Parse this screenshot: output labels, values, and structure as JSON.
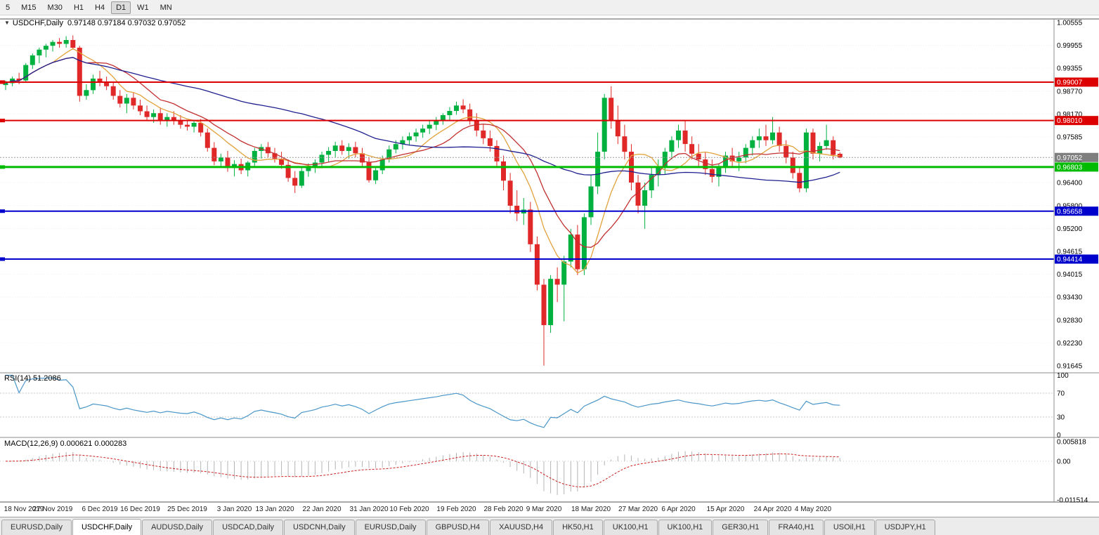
{
  "toolbar": {
    "timeframe_buttons": [
      "5",
      "M15",
      "M30",
      "H1",
      "H4",
      "D1",
      "W1",
      "MN"
    ],
    "active_timeframe": "D1"
  },
  "chart": {
    "symbol": "USDCHF,Daily",
    "ohlc_text": "0.97148 0.97184 0.97032 0.97052",
    "rsi_label": "RSI(14) 51.2086",
    "macd_label": "MACD(12,26,9) 0.000621 0.000283"
  },
  "chart_data": {
    "type": "candlestick",
    "title": "USDCHF,Daily",
    "price_axis": {
      "top": 1.00555,
      "bottom": 0.91645,
      "labels": [
        "1.00555",
        "0.99955",
        "0.99355",
        "0.98770",
        "0.98170",
        "0.97585",
        "0.96991",
        "0.96400",
        "0.95800",
        "0.95200",
        "0.94615",
        "0.94015",
        "0.93430",
        "0.92830",
        "0.92230",
        "0.91645"
      ]
    },
    "x_axis_labels": [
      {
        "label": "18 Nov 2019",
        "bar": 0
      },
      {
        "label": "27 Nov 2019",
        "bar": 7
      },
      {
        "label": "6 Dec 2019",
        "bar": 14
      },
      {
        "label": "16 Dec 2019",
        "bar": 20
      },
      {
        "label": "25 Dec 2019",
        "bar": 27
      },
      {
        "label": "3 Jan 2020",
        "bar": 34
      },
      {
        "label": "13 Jan 2020",
        "bar": 40
      },
      {
        "label": "22 Jan 2020",
        "bar": 47
      },
      {
        "label": "31 Jan 2020",
        "bar": 54
      },
      {
        "label": "10 Feb 2020",
        "bar": 60
      },
      {
        "label": "19 Feb 2020",
        "bar": 67
      },
      {
        "label": "28 Feb 2020",
        "bar": 74
      },
      {
        "label": "9 Mar 2020",
        "bar": 80
      },
      {
        "label": "18 Mar 2020",
        "bar": 87
      },
      {
        "label": "27 Mar 2020",
        "bar": 94
      },
      {
        "label": "6 Apr 2020",
        "bar": 100
      },
      {
        "label": "15 Apr 2020",
        "bar": 107
      },
      {
        "label": "24 Apr 2020",
        "bar": 114
      },
      {
        "label": "4 May 2020",
        "bar": 120
      }
    ],
    "candles": [
      [
        0.9893,
        0.9905,
        0.988,
        0.9898
      ],
      [
        0.9898,
        0.9915,
        0.989,
        0.991
      ],
      [
        0.991,
        0.9925,
        0.9895,
        0.9905
      ],
      [
        0.9905,
        0.995,
        0.99,
        0.9945
      ],
      [
        0.9945,
        0.9975,
        0.9935,
        0.997
      ],
      [
        0.997,
        0.999,
        0.995,
        0.9985
      ],
      [
        0.9985,
        1.0,
        0.9965,
        0.9995
      ],
      [
        0.9995,
        1.001,
        0.998,
        1.0005
      ],
      [
        1.0005,
        1.0015,
        0.999,
        1.0
      ],
      [
        1.0,
        1.002,
        0.999,
        1.001
      ],
      [
        1.001,
        1.0022,
        0.9985,
        0.999
      ],
      [
        0.999,
        0.9995,
        0.985,
        0.9865
      ],
      [
        0.9865,
        0.9895,
        0.9855,
        0.988
      ],
      [
        0.988,
        0.992,
        0.987,
        0.991
      ],
      [
        0.991,
        0.993,
        0.989,
        0.99
      ],
      [
        0.99,
        0.9915,
        0.988,
        0.989
      ],
      [
        0.989,
        0.99,
        0.9855,
        0.9865
      ],
      [
        0.9865,
        0.988,
        0.9835,
        0.9845
      ],
      [
        0.9845,
        0.987,
        0.982,
        0.986
      ],
      [
        0.986,
        0.9875,
        0.983,
        0.984
      ],
      [
        0.984,
        0.9855,
        0.9815,
        0.9825
      ],
      [
        0.9825,
        0.984,
        0.98,
        0.981
      ],
      [
        0.981,
        0.983,
        0.9795,
        0.982
      ],
      [
        0.982,
        0.9835,
        0.979,
        0.98
      ],
      [
        0.98,
        0.982,
        0.9785,
        0.981
      ],
      [
        0.981,
        0.9825,
        0.979,
        0.98
      ],
      [
        0.98,
        0.9815,
        0.978,
        0.979
      ],
      [
        0.979,
        0.98,
        0.9775,
        0.9785
      ],
      [
        0.9785,
        0.98,
        0.977,
        0.9795
      ],
      [
        0.9795,
        0.9805,
        0.976,
        0.977
      ],
      [
        0.977,
        0.978,
        0.972,
        0.973
      ],
      [
        0.973,
        0.9745,
        0.9685,
        0.9695
      ],
      [
        0.9695,
        0.9715,
        0.968,
        0.9705
      ],
      [
        0.9705,
        0.9722,
        0.9668,
        0.9678
      ],
      [
        0.9678,
        0.9698,
        0.9656,
        0.9688
      ],
      [
        0.9688,
        0.9702,
        0.9662,
        0.9672
      ],
      [
        0.9672,
        0.9696,
        0.9656,
        0.9692
      ],
      [
        0.9692,
        0.973,
        0.9682,
        0.9722
      ],
      [
        0.9722,
        0.974,
        0.9702,
        0.9732
      ],
      [
        0.9732,
        0.9745,
        0.9706,
        0.9716
      ],
      [
        0.9716,
        0.973,
        0.9692,
        0.9702
      ],
      [
        0.9702,
        0.972,
        0.9676,
        0.9686
      ],
      [
        0.9686,
        0.97,
        0.9642,
        0.9652
      ],
      [
        0.9652,
        0.967,
        0.9613,
        0.9632
      ],
      [
        0.9632,
        0.968,
        0.9626,
        0.967
      ],
      [
        0.967,
        0.969,
        0.9655,
        0.968
      ],
      [
        0.968,
        0.97,
        0.9665,
        0.9692
      ],
      [
        0.9692,
        0.972,
        0.9682,
        0.9712
      ],
      [
        0.9712,
        0.9732,
        0.9692,
        0.9722
      ],
      [
        0.9722,
        0.9746,
        0.9706,
        0.9736
      ],
      [
        0.9736,
        0.975,
        0.9712,
        0.9722
      ],
      [
        0.9722,
        0.9742,
        0.9702,
        0.9732
      ],
      [
        0.9732,
        0.9746,
        0.9706,
        0.9716
      ],
      [
        0.9716,
        0.973,
        0.9682,
        0.9692
      ],
      [
        0.9692,
        0.9706,
        0.964,
        0.9646
      ],
      [
        0.9646,
        0.968,
        0.9636,
        0.9672
      ],
      [
        0.9672,
        0.971,
        0.9662,
        0.97
      ],
      [
        0.97,
        0.9736,
        0.9692,
        0.9726
      ],
      [
        0.9726,
        0.975,
        0.9716,
        0.974
      ],
      [
        0.974,
        0.976,
        0.9726,
        0.975
      ],
      [
        0.975,
        0.977,
        0.9736,
        0.976
      ],
      [
        0.976,
        0.978,
        0.9746,
        0.977
      ],
      [
        0.977,
        0.979,
        0.9756,
        0.978
      ],
      [
        0.978,
        0.98,
        0.9766,
        0.979
      ],
      [
        0.979,
        0.981,
        0.9776,
        0.98
      ],
      [
        0.98,
        0.982,
        0.979,
        0.9815
      ],
      [
        0.9815,
        0.9836,
        0.98,
        0.9826
      ],
      [
        0.9826,
        0.985,
        0.9816,
        0.984
      ],
      [
        0.984,
        0.9856,
        0.982,
        0.983
      ],
      [
        0.983,
        0.9845,
        0.979,
        0.98
      ],
      [
        0.98,
        0.982,
        0.976,
        0.9775
      ],
      [
        0.9775,
        0.979,
        0.974,
        0.9755
      ],
      [
        0.9755,
        0.9775,
        0.972,
        0.9735
      ],
      [
        0.9735,
        0.975,
        0.968,
        0.9695
      ],
      [
        0.9695,
        0.971,
        0.962,
        0.9645
      ],
      [
        0.9645,
        0.9665,
        0.956,
        0.958
      ],
      [
        0.958,
        0.962,
        0.954,
        0.956
      ],
      [
        0.956,
        0.96,
        0.953,
        0.957
      ],
      [
        0.957,
        0.959,
        0.946,
        0.948
      ],
      [
        0.948,
        0.95,
        0.936,
        0.9375
      ],
      [
        0.9375,
        0.939,
        0.9165,
        0.927
      ],
      [
        0.927,
        0.94,
        0.925,
        0.939
      ],
      [
        0.939,
        0.942,
        0.933,
        0.9375
      ],
      [
        0.9375,
        0.945,
        0.928,
        0.9435
      ],
      [
        0.9435,
        0.952,
        0.942,
        0.9505
      ],
      [
        0.9505,
        0.953,
        0.94,
        0.9415
      ],
      [
        0.9415,
        0.956,
        0.94,
        0.955
      ],
      [
        0.955,
        0.966,
        0.953,
        0.963
      ],
      [
        0.963,
        0.977,
        0.961,
        0.972
      ],
      [
        0.972,
        0.987,
        0.97,
        0.986
      ],
      [
        0.986,
        0.989,
        0.978,
        0.98
      ],
      [
        0.98,
        0.984,
        0.974,
        0.976
      ],
      [
        0.976,
        0.979,
        0.97,
        0.972
      ],
      [
        0.972,
        0.974,
        0.962,
        0.964
      ],
      [
        0.964,
        0.966,
        0.956,
        0.958
      ],
      [
        0.958,
        0.964,
        0.952,
        0.962
      ],
      [
        0.962,
        0.968,
        0.96,
        0.966
      ],
      [
        0.966,
        0.97,
        0.963,
        0.968
      ],
      [
        0.968,
        0.973,
        0.966,
        0.972
      ],
      [
        0.972,
        0.976,
        0.97,
        0.975
      ],
      [
        0.975,
        0.979,
        0.973,
        0.9775
      ],
      [
        0.9775,
        0.98,
        0.972,
        0.974
      ],
      [
        0.974,
        0.976,
        0.97,
        0.9715
      ],
      [
        0.9715,
        0.974,
        0.968,
        0.97
      ],
      [
        0.97,
        0.972,
        0.966,
        0.9675
      ],
      [
        0.9675,
        0.97,
        0.964,
        0.9655
      ],
      [
        0.9655,
        0.969,
        0.963,
        0.968
      ],
      [
        0.968,
        0.972,
        0.9665,
        0.971
      ],
      [
        0.971,
        0.973,
        0.968,
        0.9695
      ],
      [
        0.9695,
        0.972,
        0.967,
        0.9705
      ],
      [
        0.9705,
        0.974,
        0.969,
        0.973
      ],
      [
        0.973,
        0.976,
        0.971,
        0.975
      ],
      [
        0.975,
        0.978,
        0.973,
        0.976
      ],
      [
        0.976,
        0.979,
        0.9735,
        0.975
      ],
      [
        0.975,
        0.981,
        0.974,
        0.977
      ],
      [
        0.977,
        0.9785,
        0.972,
        0.9735
      ],
      [
        0.9735,
        0.975,
        0.969,
        0.9705
      ],
      [
        0.9705,
        0.972,
        0.965,
        0.9665
      ],
      [
        0.9665,
        0.968,
        0.9615,
        0.9625
      ],
      [
        0.9625,
        0.978,
        0.9615,
        0.977
      ],
      [
        0.977,
        0.978,
        0.97,
        0.9715
      ],
      [
        0.9715,
        0.9745,
        0.9695,
        0.9735
      ],
      [
        0.9735,
        0.979,
        0.9725,
        0.975
      ],
      [
        0.975,
        0.976,
        0.97,
        0.9712
      ],
      [
        0.97148,
        0.97184,
        0.97032,
        0.97052
      ]
    ],
    "colors": {
      "bull": "#00b140",
      "bear": "#e02828",
      "grid": "#f0f0f0",
      "current_price": "#7f7f7f"
    },
    "moving_averages": [
      {
        "period": 8,
        "color": "#e2a23c"
      },
      {
        "period": 13,
        "color": "#c23030"
      },
      {
        "period": 45,
        "color": "#1f1f8f"
      }
    ],
    "horizontal_lines": [
      {
        "value": 0.99007,
        "label": "0.99007",
        "color": "#dd0000",
        "width": 2
      },
      {
        "value": 0.9801,
        "label": "0.98010",
        "color": "#dd0000",
        "width": 2
      },
      {
        "value": 0.96803,
        "label": "0.96803",
        "color": "#00bb00",
        "width": 3
      },
      {
        "value": 0.95658,
        "label": "0.95658",
        "color": "#0000cc",
        "width": 2
      },
      {
        "value": 0.94414,
        "label": "0.94414",
        "color": "#0000cc",
        "width": 2
      }
    ],
    "current_price": {
      "value": 0.97052,
      "label": "0.97052"
    },
    "rsi": {
      "period": 14,
      "current": 51.2086,
      "levels": [
        "100",
        "70",
        "30",
        "0"
      ],
      "range": [
        0,
        100
      ],
      "color": "#4a96c8"
    },
    "macd": {
      "fast": 12,
      "slow": 26,
      "signal": 9,
      "current_main": 0.000621,
      "current_signal": 0.000283,
      "axis_labels": [
        "0.005818",
        "0.00",
        "-0.011514"
      ],
      "max": 0.005818,
      "min": -0.011514,
      "hist_color": "#b4b4b4",
      "signal_color": "#cc2020"
    }
  },
  "tabs": {
    "items": [
      {
        "label": "EURUSD,Daily",
        "active": false
      },
      {
        "label": "USDCHF,Daily",
        "active": true
      },
      {
        "label": "AUDUSD,Daily",
        "active": false
      },
      {
        "label": "USDCAD,Daily",
        "active": false
      },
      {
        "label": "USDCNH,Daily",
        "active": false
      },
      {
        "label": "EURUSD,Daily",
        "active": false
      },
      {
        "label": "GBPUSD,H4",
        "active": false
      },
      {
        "label": "XAUUSD,H4",
        "active": false
      },
      {
        "label": "HK50,H1",
        "active": false
      },
      {
        "label": "UK100,H1",
        "active": false
      },
      {
        "label": "UK100,H1",
        "active": false
      },
      {
        "label": "GER30,H1",
        "active": false
      },
      {
        "label": "FRA40,H1",
        "active": false
      },
      {
        "label": "USOil,H1",
        "active": false
      },
      {
        "label": "USDJPY,H1",
        "active": false
      }
    ]
  }
}
